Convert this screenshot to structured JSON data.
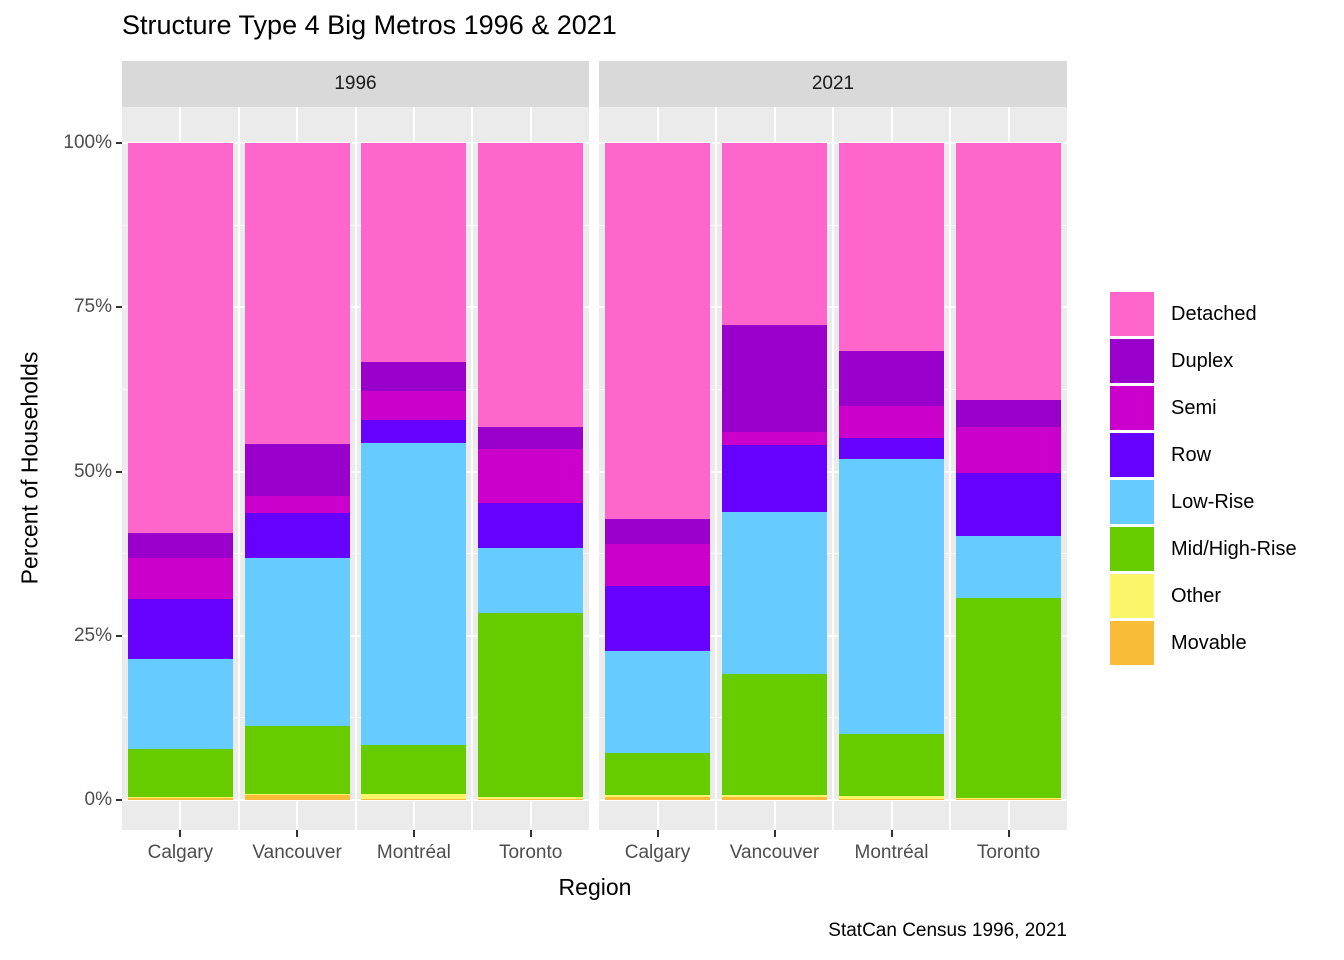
{
  "title": "Structure Type 4 Big Metros 1996 & 2021",
  "caption": "StatCan Census 1996, 2021",
  "x_axis_title": "Region",
  "y_axis_title": "Percent of Households",
  "y_ticks": [
    {
      "label": "100%",
      "value": 100
    },
    {
      "label": "75%",
      "value": 75
    },
    {
      "label": "50%",
      "value": 50
    },
    {
      "label": "25%",
      "value": 25
    },
    {
      "label": "0%",
      "value": 0
    }
  ],
  "colors": {
    "Detached": "#FF66CC",
    "Duplex": "#9900CC",
    "Semi": "#CC00CC",
    "Row": "#6600FF",
    "Low-Rise": "#66CCFF",
    "Mid/High-Rise": "#66CC00",
    "Other": "#FAF569",
    "Movable": "#F8BC38"
  },
  "chart_data": {
    "type": "bar",
    "stacked": true,
    "title": "Structure Type 4 Big Metros 1996 & 2021",
    "xlabel": "Region",
    "ylabel": "Percent of Households",
    "ylim": [
      0,
      100
    ],
    "grid": true,
    "legend_position": "right",
    "legend": [
      "Detached",
      "Duplex",
      "Semi",
      "Row",
      "Low-Rise",
      "Mid/High-Rise",
      "Other",
      "Movable"
    ],
    "units": "percent",
    "facets": [
      {
        "label": "1996",
        "categories": [
          "Calgary",
          "Vancouver",
          "Montréal",
          "Toronto"
        ],
        "series": [
          {
            "name": "Detached",
            "values": [
              59.4,
              45.8,
              33.4,
              43.3
            ]
          },
          {
            "name": "Duplex",
            "values": [
              3.8,
              8.0,
              4.3,
              3.3
            ]
          },
          {
            "name": "Semi",
            "values": [
              6.2,
              2.5,
              4.5,
              8.2
            ]
          },
          {
            "name": "Row",
            "values": [
              9.2,
              6.9,
              3.5,
              6.9
            ]
          },
          {
            "name": "Low-Rise",
            "values": [
              13.7,
              25.6,
              46.0,
              9.9
            ]
          },
          {
            "name": "Mid/High-Rise",
            "values": [
              7.2,
              10.3,
              7.4,
              28.0
            ]
          },
          {
            "name": "Other",
            "values": [
              0.2,
              0.2,
              0.7,
              0.3
            ]
          },
          {
            "name": "Movable",
            "values": [
              0.3,
              0.7,
              0.2,
              0.1
            ]
          }
        ]
      },
      {
        "label": "2021",
        "categories": [
          "Calgary",
          "Vancouver",
          "Montréal",
          "Toronto"
        ],
        "series": [
          {
            "name": "Detached",
            "values": [
              57.3,
              27.7,
              31.7,
              39.1
            ]
          },
          {
            "name": "Duplex",
            "values": [
              3.7,
              16.3,
              8.3,
              4.1
            ]
          },
          {
            "name": "Semi",
            "values": [
              6.4,
              2.0,
              4.9,
              7.1
            ]
          },
          {
            "name": "Row",
            "values": [
              10.0,
              10.1,
              3.2,
              9.5
            ]
          },
          {
            "name": "Low-Rise",
            "values": [
              15.4,
              24.7,
              41.9,
              9.5
            ]
          },
          {
            "name": "Mid/High-Rise",
            "values": [
              6.5,
              18.4,
              9.4,
              30.4
            ]
          },
          {
            "name": "Other",
            "values": [
              0.2,
              0.3,
              0.5,
              0.2
            ]
          },
          {
            "name": "Movable",
            "values": [
              0.5,
              0.5,
              0.1,
              0.1
            ]
          }
        ]
      }
    ]
  }
}
